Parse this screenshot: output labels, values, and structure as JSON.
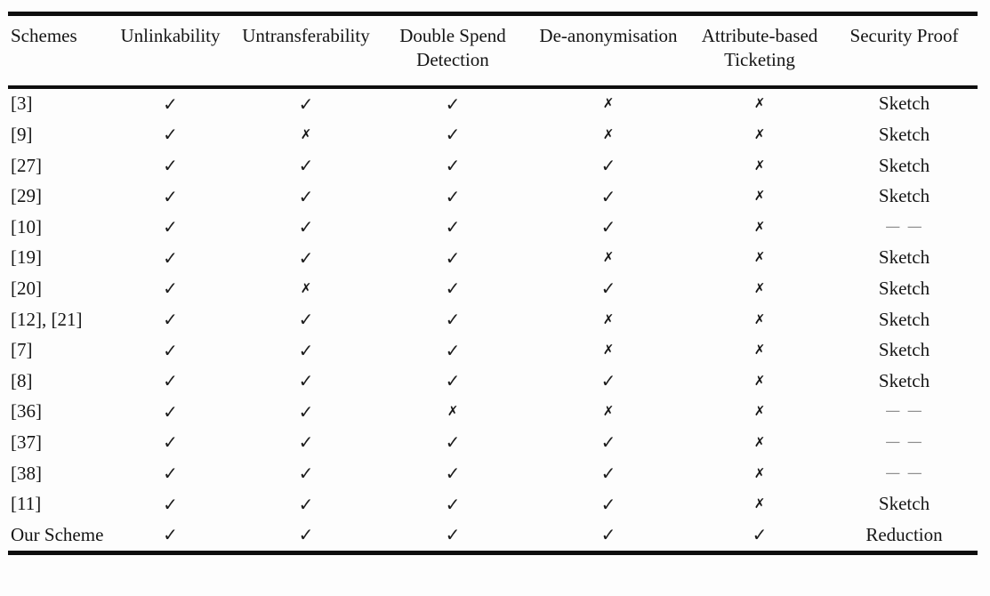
{
  "marks": {
    "check": "✓",
    "cross": "✗",
    "dash": "— —"
  },
  "colors": {
    "text": "#141414",
    "rule": "#0e0e0e",
    "dash": "#8f8f8f",
    "background": "#fdfdfd"
  },
  "table": {
    "columns": [
      "Schemes",
      "Unlinkability",
      "Untransferability",
      "Double Spend Detection",
      "De-anonymisation",
      "Attribute-based Ticketing",
      "Security Proof"
    ],
    "rows": [
      {
        "scheme": "[3]",
        "marks": [
          "check",
          "check",
          "check",
          "cross",
          "cross"
        ],
        "security_proof": "Sketch"
      },
      {
        "scheme": "[9]",
        "marks": [
          "check",
          "cross",
          "check",
          "cross",
          "cross"
        ],
        "security_proof": "Sketch"
      },
      {
        "scheme": "[27]",
        "marks": [
          "check",
          "check",
          "check",
          "check",
          "cross"
        ],
        "security_proof": "Sketch"
      },
      {
        "scheme": "[29]",
        "marks": [
          "check",
          "check",
          "check",
          "check",
          "cross"
        ],
        "security_proof": "Sketch"
      },
      {
        "scheme": "[10]",
        "marks": [
          "check",
          "check",
          "check",
          "check",
          "cross"
        ],
        "security_proof": "dash"
      },
      {
        "scheme": "[19]",
        "marks": [
          "check",
          "check",
          "check",
          "cross",
          "cross"
        ],
        "security_proof": "Sketch"
      },
      {
        "scheme": "[20]",
        "marks": [
          "check",
          "cross",
          "check",
          "check",
          "cross"
        ],
        "security_proof": "Sketch"
      },
      {
        "scheme": "[12], [21]",
        "marks": [
          "check",
          "check",
          "check",
          "cross",
          "cross"
        ],
        "security_proof": "Sketch"
      },
      {
        "scheme": "[7]",
        "marks": [
          "check",
          "check",
          "check",
          "cross",
          "cross"
        ],
        "security_proof": "Sketch"
      },
      {
        "scheme": "[8]",
        "marks": [
          "check",
          "check",
          "check",
          "check",
          "cross"
        ],
        "security_proof": "Sketch"
      },
      {
        "scheme": "[36]",
        "marks": [
          "check",
          "check",
          "cross",
          "cross",
          "cross"
        ],
        "security_proof": "dash"
      },
      {
        "scheme": "[37]",
        "marks": [
          "check",
          "check",
          "check",
          "check",
          "cross"
        ],
        "security_proof": "dash"
      },
      {
        "scheme": "[38]",
        "marks": [
          "check",
          "check",
          "check",
          "check",
          "cross"
        ],
        "security_proof": "dash"
      },
      {
        "scheme": "[11]",
        "marks": [
          "check",
          "check",
          "check",
          "check",
          "cross"
        ],
        "security_proof": "Sketch"
      },
      {
        "scheme": "Our Scheme",
        "marks": [
          "check",
          "check",
          "check",
          "check",
          "check"
        ],
        "security_proof": "Reduction"
      }
    ]
  }
}
